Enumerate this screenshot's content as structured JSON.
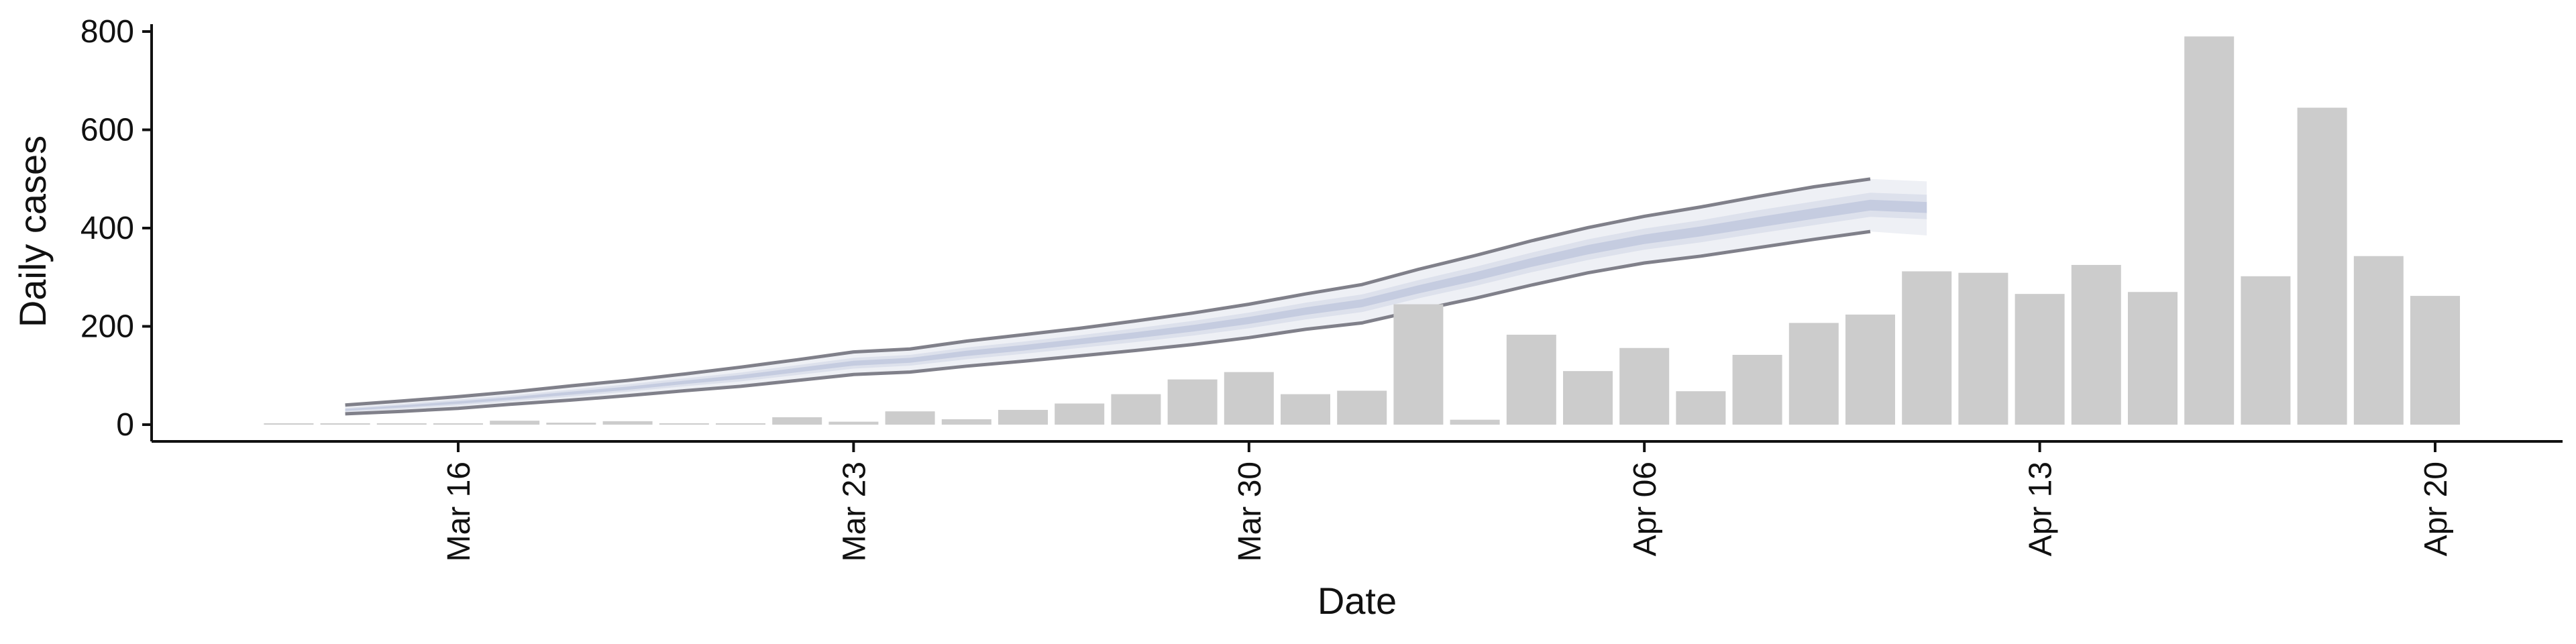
{
  "chart_data": {
    "type": "bar",
    "xlabel": "Date",
    "ylabel": "Daily cases",
    "ylim": [
      -40,
      830
    ],
    "grid": false,
    "x_ticks": [
      {
        "day": 16,
        "label": "Mar 16"
      },
      {
        "day": 23,
        "label": "Mar 23"
      },
      {
        "day": 30,
        "label": "Mar 30"
      },
      {
        "day": 37,
        "label": "Apr 06"
      },
      {
        "day": 44,
        "label": "Apr 13"
      },
      {
        "day": 51,
        "label": "Apr 20"
      }
    ],
    "y_ticks": [
      0,
      200,
      400,
      600,
      800
    ],
    "x_note": "day = day of March (Apr 06 = day 37)",
    "bars": {
      "color": "#cccccc",
      "days": [
        13,
        14,
        15,
        16,
        17,
        18,
        19,
        20,
        21,
        22,
        23,
        24,
        25,
        26,
        27,
        28,
        29,
        30,
        31,
        32,
        33,
        34,
        35,
        36,
        37,
        38,
        39,
        40,
        41,
        42,
        43,
        44,
        45,
        46,
        47,
        48,
        49,
        50,
        51
      ],
      "values": [
        1,
        0,
        0,
        2,
        8,
        4,
        7,
        0,
        0,
        15,
        6,
        27,
        11,
        30,
        43,
        62,
        92,
        107,
        62,
        69,
        245,
        10,
        183,
        109,
        156,
        68,
        142,
        207,
        224,
        312,
        309,
        266,
        325,
        270,
        790,
        302,
        645,
        343,
        262
      ]
    },
    "model_band": {
      "colors": {
        "outer": "#eef0f5",
        "middle": "#dde1ec",
        "inner": "#c5cce0",
        "line": "#80808a"
      },
      "days": [
        14,
        15,
        16,
        17,
        18,
        19,
        20,
        21,
        22,
        23,
        24,
        25,
        26,
        27,
        28,
        29,
        30,
        31,
        32,
        33,
        34,
        35,
        36,
        37,
        38,
        39,
        40,
        41,
        42
      ],
      "lower_outer": [
        22,
        27,
        33,
        42,
        50,
        59,
        69,
        78,
        90,
        102,
        107,
        119,
        129,
        140,
        151,
        163,
        177,
        194,
        207,
        233,
        257,
        284,
        309,
        329,
        343,
        360,
        377,
        393,
        385
      ],
      "lower_middle": [
        26,
        32,
        39,
        48,
        57,
        67,
        78,
        88,
        101,
        114,
        120,
        133,
        144,
        156,
        168,
        181,
        196,
        214,
        229,
        257,
        282,
        310,
        335,
        356,
        371,
        389,
        406,
        423,
        418
      ],
      "median": [
        30,
        37,
        45,
        54,
        64,
        74,
        86,
        97,
        111,
        125,
        131,
        145,
        156,
        169,
        182,
        196,
        212,
        231,
        247,
        275,
        301,
        330,
        356,
        377,
        393,
        411,
        429,
        446,
        441
      ],
      "upper_middle": [
        34,
        42,
        51,
        60,
        71,
        82,
        94,
        106,
        121,
        136,
        142,
        157,
        169,
        182,
        196,
        211,
        228,
        248,
        265,
        294,
        321,
        350,
        377,
        399,
        416,
        436,
        454,
        472,
        468
      ],
      "upper_outer": [
        40,
        48,
        57,
        67,
        79,
        90,
        103,
        117,
        132,
        148,
        154,
        170,
        183,
        196,
        211,
        227,
        245,
        266,
        285,
        316,
        344,
        374,
        401,
        424,
        443,
        464,
        484,
        500,
        495
      ]
    }
  }
}
